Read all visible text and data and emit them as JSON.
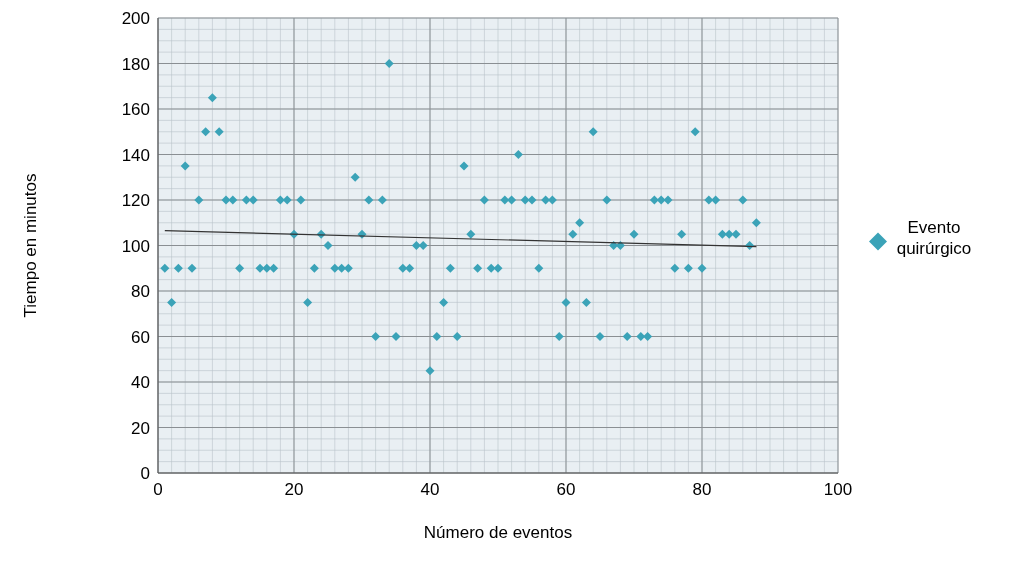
{
  "chart_data": {
    "type": "scatter",
    "xlabel": "Número de eventos",
    "ylabel": "Tiempo en minutos",
    "xlim": [
      0,
      100
    ],
    "xticks": [
      0,
      20,
      40,
      60,
      80,
      100
    ],
    "ylim": [
      0,
      200
    ],
    "yticks": [
      0,
      20,
      40,
      60,
      80,
      100,
      120,
      140,
      160,
      180,
      200
    ],
    "grid": true,
    "legend": "right",
    "series": [
      {
        "name": "Evento quirúrgico",
        "color": "#3ba3b8",
        "marker": "diamond",
        "x": [
          1,
          2,
          3,
          4,
          5,
          6,
          7,
          8,
          9,
          10,
          11,
          12,
          13,
          14,
          15,
          16,
          17,
          18,
          19,
          20,
          21,
          22,
          23,
          24,
          25,
          26,
          27,
          28,
          29,
          30,
          31,
          32,
          33,
          34,
          35,
          36,
          37,
          38,
          39,
          40,
          41,
          42,
          43,
          44,
          45,
          46,
          47,
          48,
          49,
          50,
          51,
          52,
          53,
          54,
          55,
          56,
          57,
          58,
          59,
          60,
          61,
          62,
          63,
          64,
          65,
          66,
          67,
          68,
          69,
          70,
          71,
          72,
          73,
          74,
          75,
          76,
          77,
          78,
          79,
          80,
          81,
          82,
          83,
          84,
          85,
          86,
          87,
          88
        ],
        "values": [
          90,
          75,
          90,
          135,
          90,
          120,
          150,
          165,
          150,
          120,
          120,
          90,
          120,
          120,
          90,
          90,
          90,
          120,
          120,
          105,
          120,
          75,
          90,
          105,
          100,
          90,
          90,
          90,
          130,
          105,
          120,
          60,
          120,
          180,
          60,
          90,
          90,
          100,
          100,
          45,
          60,
          75,
          90,
          60,
          135,
          105,
          90,
          120,
          90,
          90,
          120,
          120,
          140,
          120,
          120,
          90,
          120,
          120,
          60,
          75,
          105,
          110,
          75,
          150,
          60,
          120,
          100,
          100,
          60,
          105,
          60,
          60,
          120,
          120,
          120,
          90,
          105,
          90,
          150,
          90,
          120,
          120,
          105,
          105,
          105,
          120,
          100,
          110
        ]
      },
      {
        "type": "line",
        "color": "#333333",
        "x": [
          1,
          88
        ],
        "values": [
          106.5,
          99.5
        ]
      }
    ]
  }
}
